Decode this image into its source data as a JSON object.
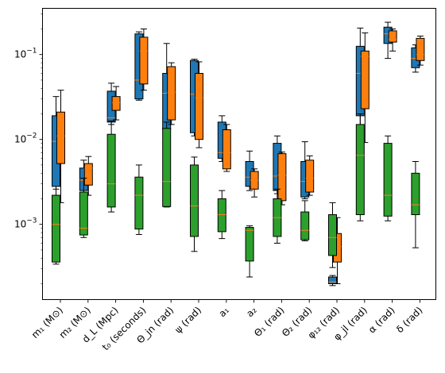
{
  "chart_data": {
    "type": "box",
    "title": "",
    "xlabel": "",
    "ylabel": "",
    "yscale": "log",
    "ylim": [
      0.00013,
      0.35
    ],
    "ytick_labels": [
      {
        "value": 0.001,
        "base": "10",
        "exp": "−3"
      },
      {
        "value": 0.01,
        "base": "10",
        "exp": "−2"
      },
      {
        "value": 0.1,
        "base": "10",
        "exp": "−1"
      }
    ],
    "categories": [
      "m₁ (M⊙)",
      "m₂ (M⊙)",
      "d_L (Mpc)",
      "t₀ (seconds)",
      "Θ_jn (rad)",
      "ψ (rad)",
      "a₁",
      "a₂",
      "Θ₁ (rad)",
      "Θ₂ (rad)",
      "φ₁₂ (rad)",
      "φ_jl (rad)",
      "α (rad)",
      "δ (rad)"
    ],
    "series": [
      {
        "color": "#1f77b4",
        "boxes": [
          {
            "whislo": 0.0022,
            "q1": 0.0028,
            "med": 0.0095,
            "q3": 0.019,
            "whishi": 0.032
          },
          {
            "whislo": 0.0022,
            "q1": 0.0025,
            "med": 0.0033,
            "q3": 0.0046,
            "whishi": 0.0057
          },
          {
            "whislo": 0.015,
            "q1": 0.016,
            "med": 0.018,
            "q3": 0.037,
            "whishi": 0.046
          },
          {
            "whislo": 0.029,
            "q1": 0.03,
            "med": 0.05,
            "q3": 0.175,
            "whishi": 0.185
          },
          {
            "whislo": 0.01,
            "q1": 0.013,
            "med": 0.035,
            "q3": 0.06,
            "whishi": 0.135
          },
          {
            "whislo": 0.011,
            "q1": 0.012,
            "med": 0.034,
            "q3": 0.085,
            "whishi": 0.088
          },
          {
            "whislo": 0.0055,
            "q1": 0.006,
            "med": 0.007,
            "q3": 0.016,
            "whishi": 0.019
          },
          {
            "whislo": 0.0025,
            "q1": 0.0028,
            "med": 0.0036,
            "q3": 0.0055,
            "whishi": 0.0073
          },
          {
            "whislo": 0.0023,
            "q1": 0.0025,
            "med": 0.0037,
            "q3": 0.009,
            "whishi": 0.011
          },
          {
            "whislo": 0.002,
            "q1": 0.0021,
            "med": 0.0032,
            "q3": 0.0055,
            "whishi": 0.0094
          },
          {
            "whislo": 0.00019,
            "q1": 0.0002,
            "med": 0.00021,
            "q3": 0.00024,
            "whishi": 0.00025
          },
          {
            "whislo": 0.014,
            "q1": 0.019,
            "med": 0.06,
            "q3": 0.125,
            "whishi": 0.205
          },
          {
            "whislo": 0.09,
            "q1": 0.135,
            "med": 0.175,
            "q3": 0.21,
            "whishi": 0.24
          },
          {
            "whislo": 0.062,
            "q1": 0.07,
            "med": 0.09,
            "q3": 0.12,
            "whishi": 0.13
          }
        ]
      },
      {
        "color": "#ff7f0e",
        "boxes": [
          {
            "whislo": 0.0018,
            "q1": 0.0052,
            "med": 0.011,
            "q3": 0.021,
            "whishi": 0.038
          },
          {
            "whislo": 0.0022,
            "q1": 0.0029,
            "med": 0.0046,
            "q3": 0.0052,
            "whishi": 0.0063
          },
          {
            "whislo": 0.017,
            "q1": 0.022,
            "med": 0.027,
            "q3": 0.032,
            "whishi": 0.042
          },
          {
            "whislo": 0.038,
            "q1": 0.045,
            "med": 0.11,
            "q3": 0.16,
            "whishi": 0.2
          },
          {
            "whislo": 0.015,
            "q1": 0.017,
            "med": 0.036,
            "q3": 0.072,
            "whishi": 0.08
          },
          {
            "whislo": 0.008,
            "q1": 0.01,
            "med": 0.031,
            "q3": 0.06,
            "whishi": 0.082
          },
          {
            "whislo": 0.0042,
            "q1": 0.0045,
            "med": 0.007,
            "q3": 0.013,
            "whishi": 0.015
          },
          {
            "whislo": 0.0021,
            "q1": 0.0026,
            "med": 0.0033,
            "q3": 0.0042,
            "whishi": 0.0045
          },
          {
            "whislo": 0.0017,
            "q1": 0.0019,
            "med": 0.0038,
            "q3": 0.0068,
            "whishi": 0.0071
          },
          {
            "whislo": 0.0022,
            "q1": 0.0024,
            "med": 0.0035,
            "q3": 0.0057,
            "whishi": 0.0064
          },
          {
            "whislo": 0.0002,
            "q1": 0.00036,
            "med": 0.00055,
            "q3": 0.00078,
            "whishi": 0.0012
          },
          {
            "whislo": 0.0092,
            "q1": 0.023,
            "med": 0.095,
            "q3": 0.11,
            "whishi": 0.18
          },
          {
            "whislo": 0.11,
            "q1": 0.14,
            "med": 0.15,
            "q3": 0.19,
            "whishi": 0.2
          },
          {
            "whislo": 0.075,
            "q1": 0.085,
            "med": 0.1,
            "q3": 0.155,
            "whishi": 0.165
          }
        ]
      },
      {
        "color": "#2ca02c",
        "boxes": [
          {
            "whislo": 0.00034,
            "q1": 0.00036,
            "med": 0.001,
            "q3": 0.0022,
            "whishi": 0.0026
          },
          {
            "whislo": 0.0007,
            "q1": 0.00075,
            "med": 0.0009,
            "q3": 0.0024,
            "whishi": 0.0035
          },
          {
            "whislo": 0.0014,
            "q1": 0.0016,
            "med": 0.003,
            "q3": 0.0115,
            "whishi": 0.0165
          },
          {
            "whislo": 0.00076,
            "q1": 0.00088,
            "med": 0.0022,
            "q3": 0.0036,
            "whishi": 0.005
          },
          {
            "whislo": 0.0016,
            "q1": 0.00162,
            "med": 0.0032,
            "q3": 0.0135,
            "whishi": 0.016
          },
          {
            "whislo": 0.00048,
            "q1": 0.00072,
            "med": 0.00165,
            "q3": 0.005,
            "whishi": 0.0062
          },
          {
            "whislo": 0.00068,
            "q1": 0.00082,
            "med": 0.0013,
            "q3": 0.002,
            "whishi": 0.0025
          },
          {
            "whislo": 0.00024,
            "q1": 0.00037,
            "med": 0.00085,
            "q3": 0.00092,
            "whishi": 0.00096
          },
          {
            "whislo": 0.0006,
            "q1": 0.00072,
            "med": 0.0012,
            "q3": 0.002,
            "whishi": 0.0026
          },
          {
            "whislo": 0.00064,
            "q1": 0.00066,
            "med": 0.00085,
            "q3": 0.0014,
            "whishi": 0.0019
          },
          {
            "whislo": 0.00031,
            "q1": 0.00043,
            "med": 0.0007,
            "q3": 0.0013,
            "whishi": 0.0018
          },
          {
            "whislo": 0.0011,
            "q1": 0.0013,
            "med": 0.0065,
            "q3": 0.015,
            "whishi": 0.02
          },
          {
            "whislo": 0.0011,
            "q1": 0.00125,
            "med": 0.0022,
            "q3": 0.009,
            "whishi": 0.011
          },
          {
            "whislo": 0.00053,
            "q1": 0.0013,
            "med": 0.0017,
            "q3": 0.004,
            "whishi": 0.0055
          }
        ]
      }
    ],
    "median_color": "#ff7f0e",
    "grid": false,
    "legend": false
  }
}
